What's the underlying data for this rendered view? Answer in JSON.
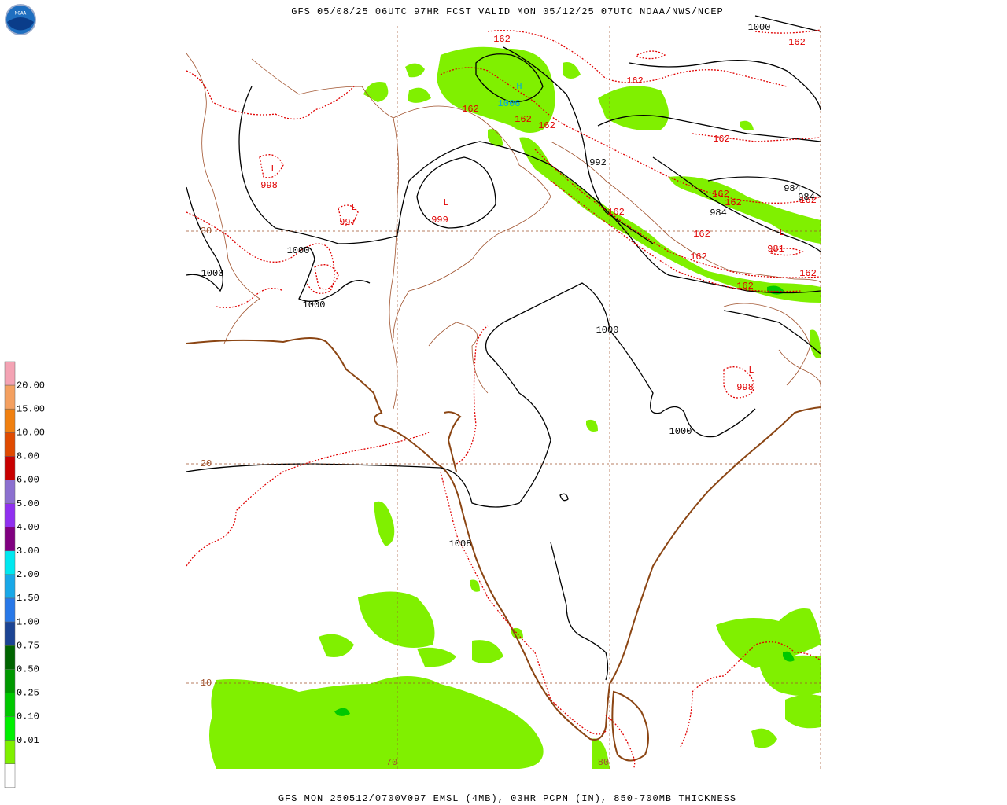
{
  "header": {
    "title": "GFS 05/08/25 06UTC 97HR FCST VALID MON 05/12/25 07UTC NOAA/NWS/NCEP"
  },
  "footer": {
    "caption": "GFS MON 250512/0700V097 EMSL (4MB), 03HR PCPN (IN), 850-700MB THICKNESS"
  },
  "logo": {
    "text": "NOAA"
  },
  "legend": {
    "items": [
      {
        "color": "#f4a3b4"
      },
      {
        "label": "20.00",
        "color": "#f4a060"
      },
      {
        "label": "15.00",
        "color": "#f08010"
      },
      {
        "label": "10.00",
        "color": "#e04a00"
      },
      {
        "label": "8.00",
        "color": "#c80000"
      },
      {
        "label": "6.00",
        "color": "#8c70d0"
      },
      {
        "label": "5.00",
        "color": "#9030f0"
      },
      {
        "label": "4.00",
        "color": "#800080"
      },
      {
        "label": "3.00",
        "color": "#00e8f0"
      },
      {
        "label": "2.00",
        "color": "#18a8e8"
      },
      {
        "label": "1.50",
        "color": "#2878e8"
      },
      {
        "label": "1.00",
        "color": "#1c4494"
      },
      {
        "label": "0.75",
        "color": "#006400"
      },
      {
        "label": "0.50",
        "color": "#009800"
      },
      {
        "label": "0.25",
        "color": "#00c800"
      },
      {
        "label": "0.10",
        "color": "#00f000"
      },
      {
        "label": "0.01",
        "color": "#80f000"
      },
      {
        "color": "#ffffff"
      }
    ]
  },
  "map": {
    "grid_labels": [
      "30",
      "20",
      "10",
      "70",
      "80"
    ],
    "labels": [
      {
        "text": "162",
        "color": "#e00000"
      },
      {
        "text": "162",
        "color": "#e00000"
      },
      {
        "text": "162",
        "color": "#e00000"
      },
      {
        "text": "162",
        "color": "#e00000"
      },
      {
        "text": "162",
        "color": "#e00000"
      },
      {
        "text": "162",
        "color": "#e00000"
      },
      {
        "text": "162",
        "color": "#e00000"
      },
      {
        "text": "162",
        "color": "#e00000"
      },
      {
        "text": "162",
        "color": "#e00000"
      },
      {
        "text": "162",
        "color": "#e00000"
      },
      {
        "text": "162",
        "color": "#e00000"
      },
      {
        "text": "162",
        "color": "#e00000"
      },
      {
        "text": "162",
        "color": "#e00000"
      },
      {
        "text": "162",
        "color": "#e00000"
      },
      {
        "text": "162",
        "color": "#e00000"
      },
      {
        "text": "H",
        "color": "#00a8e0"
      },
      {
        "text": "1006",
        "color": "#00a8e0"
      },
      {
        "text": "L",
        "color": "#e00000"
      },
      {
        "text": "998",
        "color": "#e00000"
      },
      {
        "text": "L",
        "color": "#e00000"
      },
      {
        "text": "997",
        "color": "#e00000"
      },
      {
        "text": "L",
        "color": "#e00000"
      },
      {
        "text": "999",
        "color": "#e00000"
      },
      {
        "text": "L",
        "color": "#e00000"
      },
      {
        "text": "981",
        "color": "#e00000"
      },
      {
        "text": "L",
        "color": "#e00000"
      },
      {
        "text": "998",
        "color": "#e00000"
      },
      {
        "text": "1000",
        "color": "#000000"
      },
      {
        "text": "992",
        "color": "#000000"
      },
      {
        "text": "984",
        "color": "#000000"
      },
      {
        "text": "984",
        "color": "#000000"
      },
      {
        "text": "984",
        "color": "#000000"
      },
      {
        "text": "1000",
        "color": "#000000"
      },
      {
        "text": "1000",
        "color": "#000000"
      },
      {
        "text": "1000",
        "color": "#000000"
      },
      {
        "text": "1000",
        "color": "#000000"
      },
      {
        "text": "1000",
        "color": "#000000"
      },
      {
        "text": "1008",
        "color": "#000000"
      }
    ]
  }
}
